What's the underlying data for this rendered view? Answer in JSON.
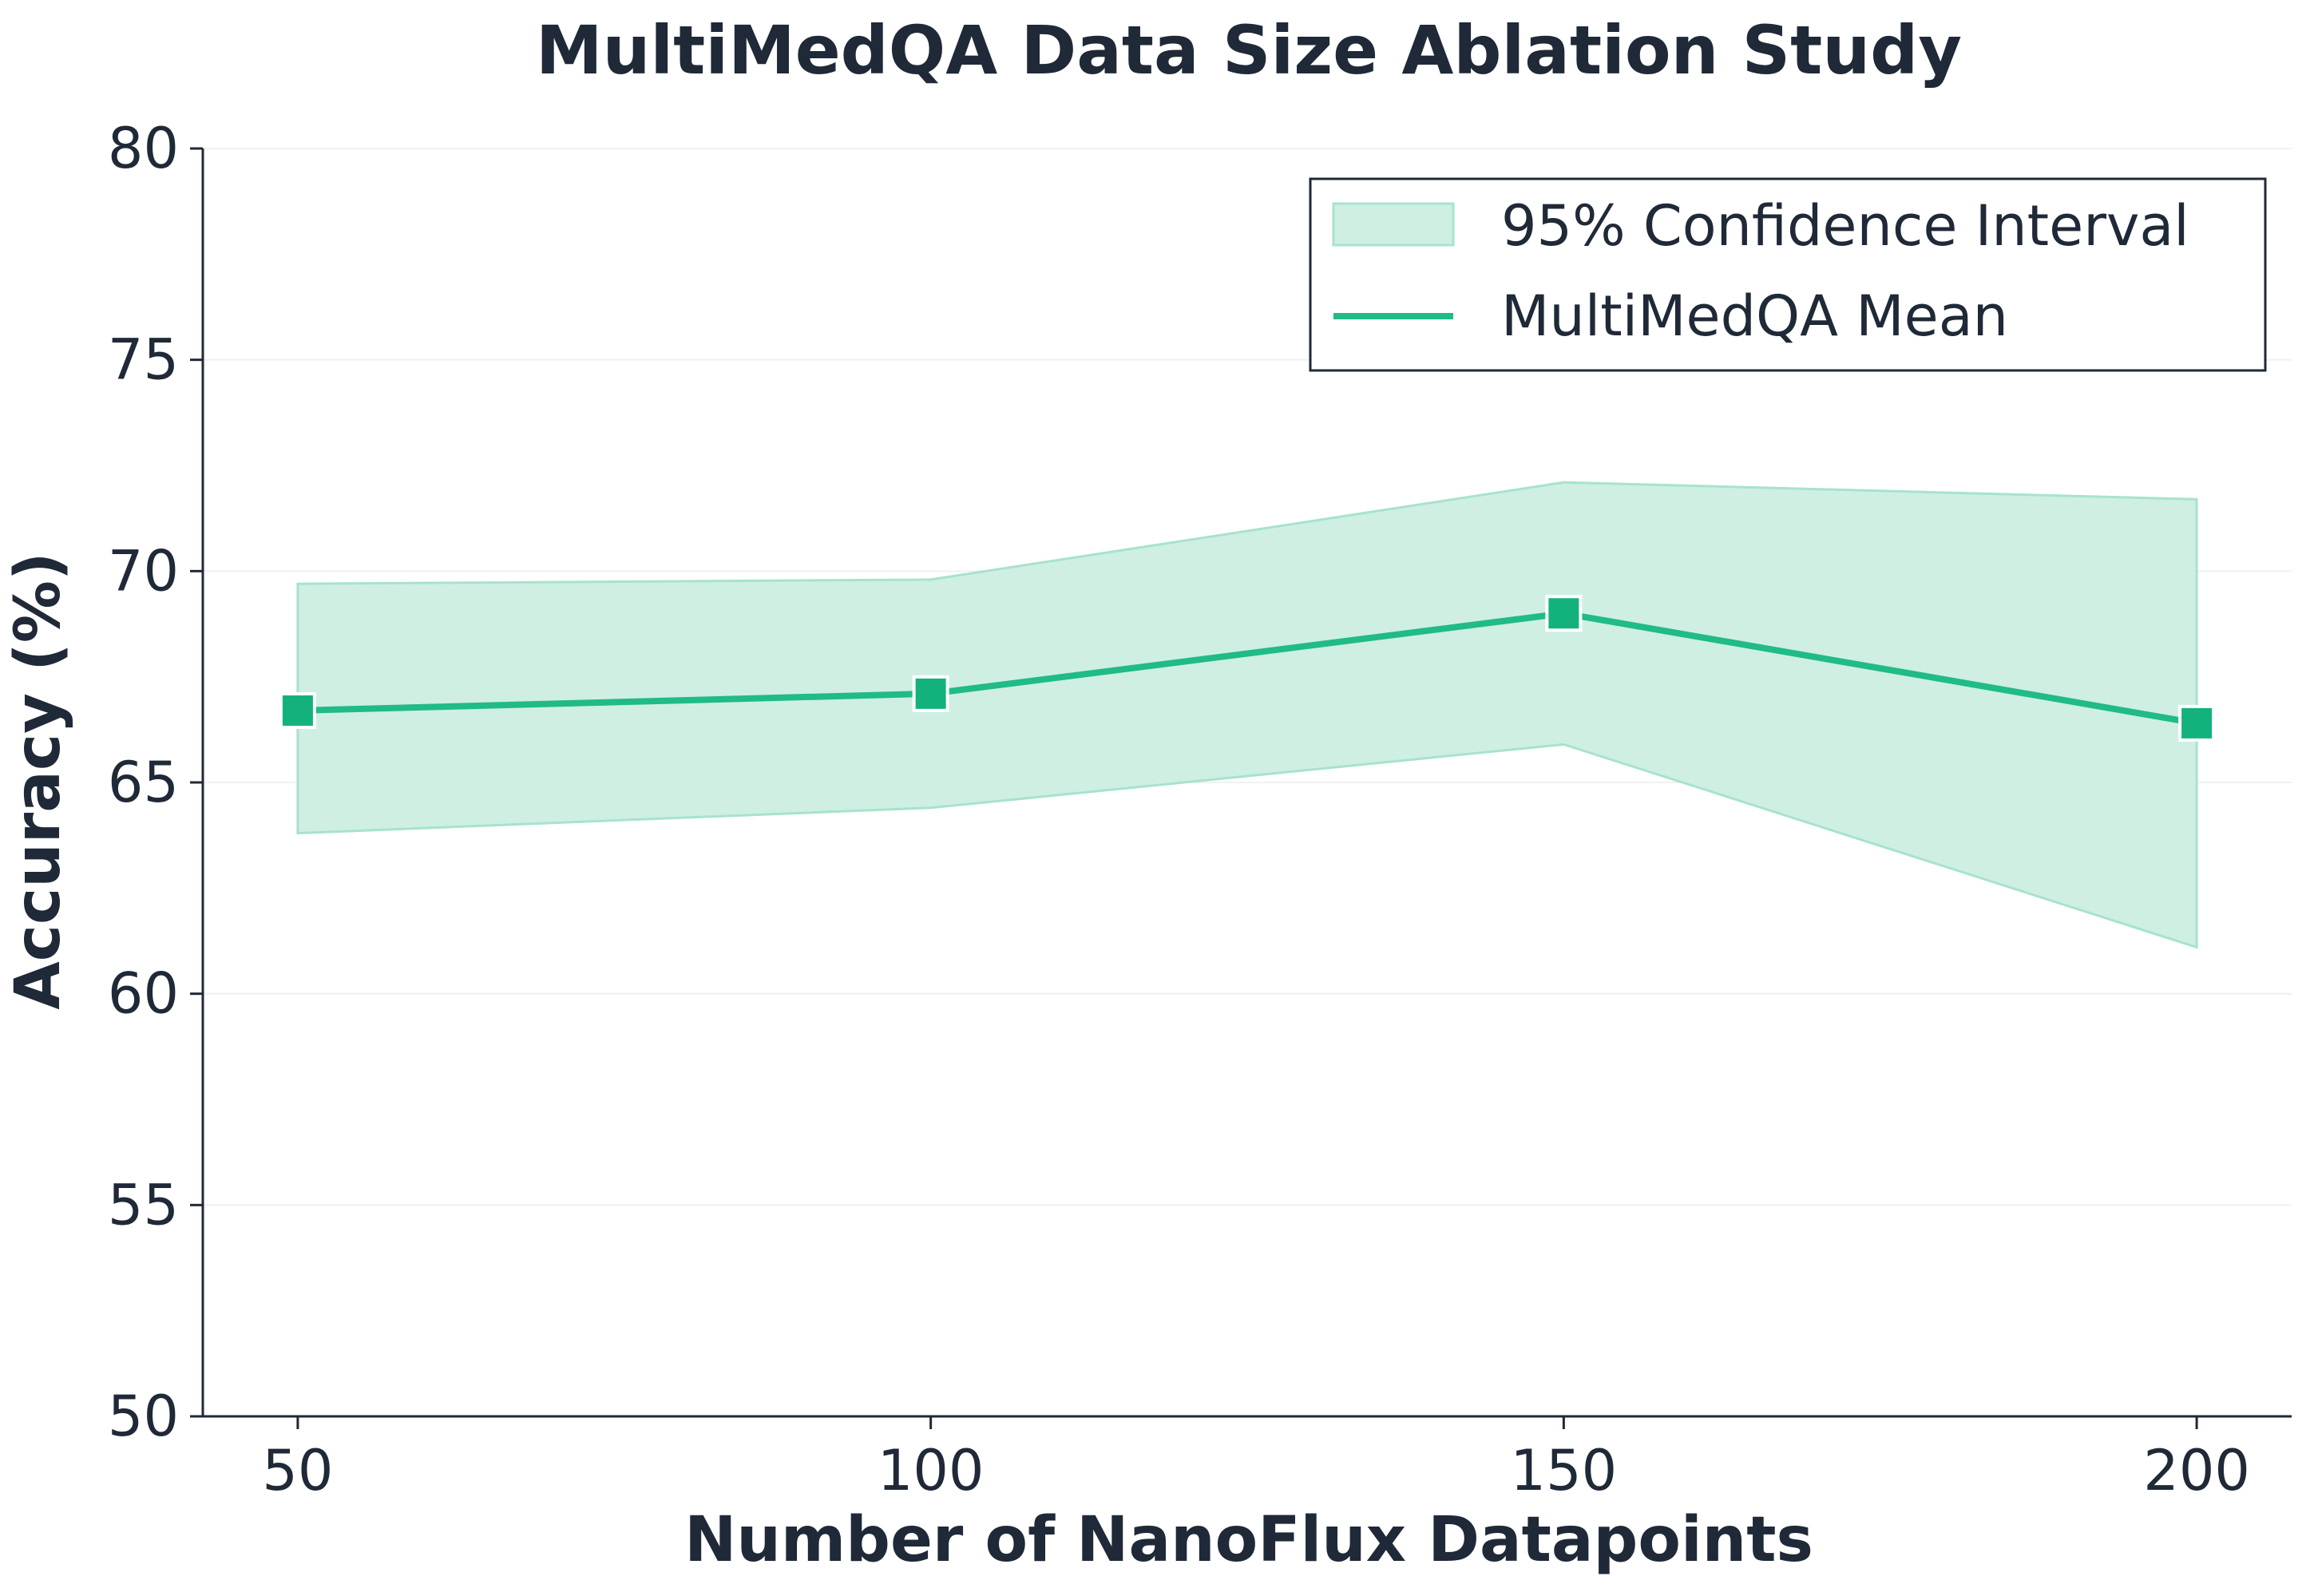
{
  "chart_data": {
    "type": "line",
    "title": "MultiMedQA Data Size Ablation Study",
    "xlabel": "Number of NanoFlux Datapoints",
    "ylabel": "Accuracy (%)",
    "x": [
      50,
      100,
      150,
      200
    ],
    "xticks": [
      "50",
      "100",
      "150",
      "200"
    ],
    "yticks": [
      "50",
      "55",
      "60",
      "65",
      "70",
      "75",
      "80"
    ],
    "xlim": [
      42.5,
      207.5
    ],
    "ylim": [
      50,
      80
    ],
    "grid": true,
    "legend_position": "top-right",
    "series": [
      {
        "name": "MultiMedQA Mean",
        "type": "line",
        "marker": "square",
        "values": [
          66.7,
          67.1,
          69.0,
          66.4
        ]
      }
    ],
    "band": {
      "name": "95% Confidence Interval",
      "lower": [
        63.8,
        64.4,
        65.9,
        61.1
      ],
      "upper": [
        69.7,
        69.8,
        72.1,
        71.7
      ]
    },
    "colors": {
      "line": "#20bb87",
      "marker": "#13b27d",
      "band_fill": "#cfefe3",
      "band_edge": "#a7e3cc",
      "axis": "#1f2937",
      "grid": "#f1f1f1"
    }
  }
}
